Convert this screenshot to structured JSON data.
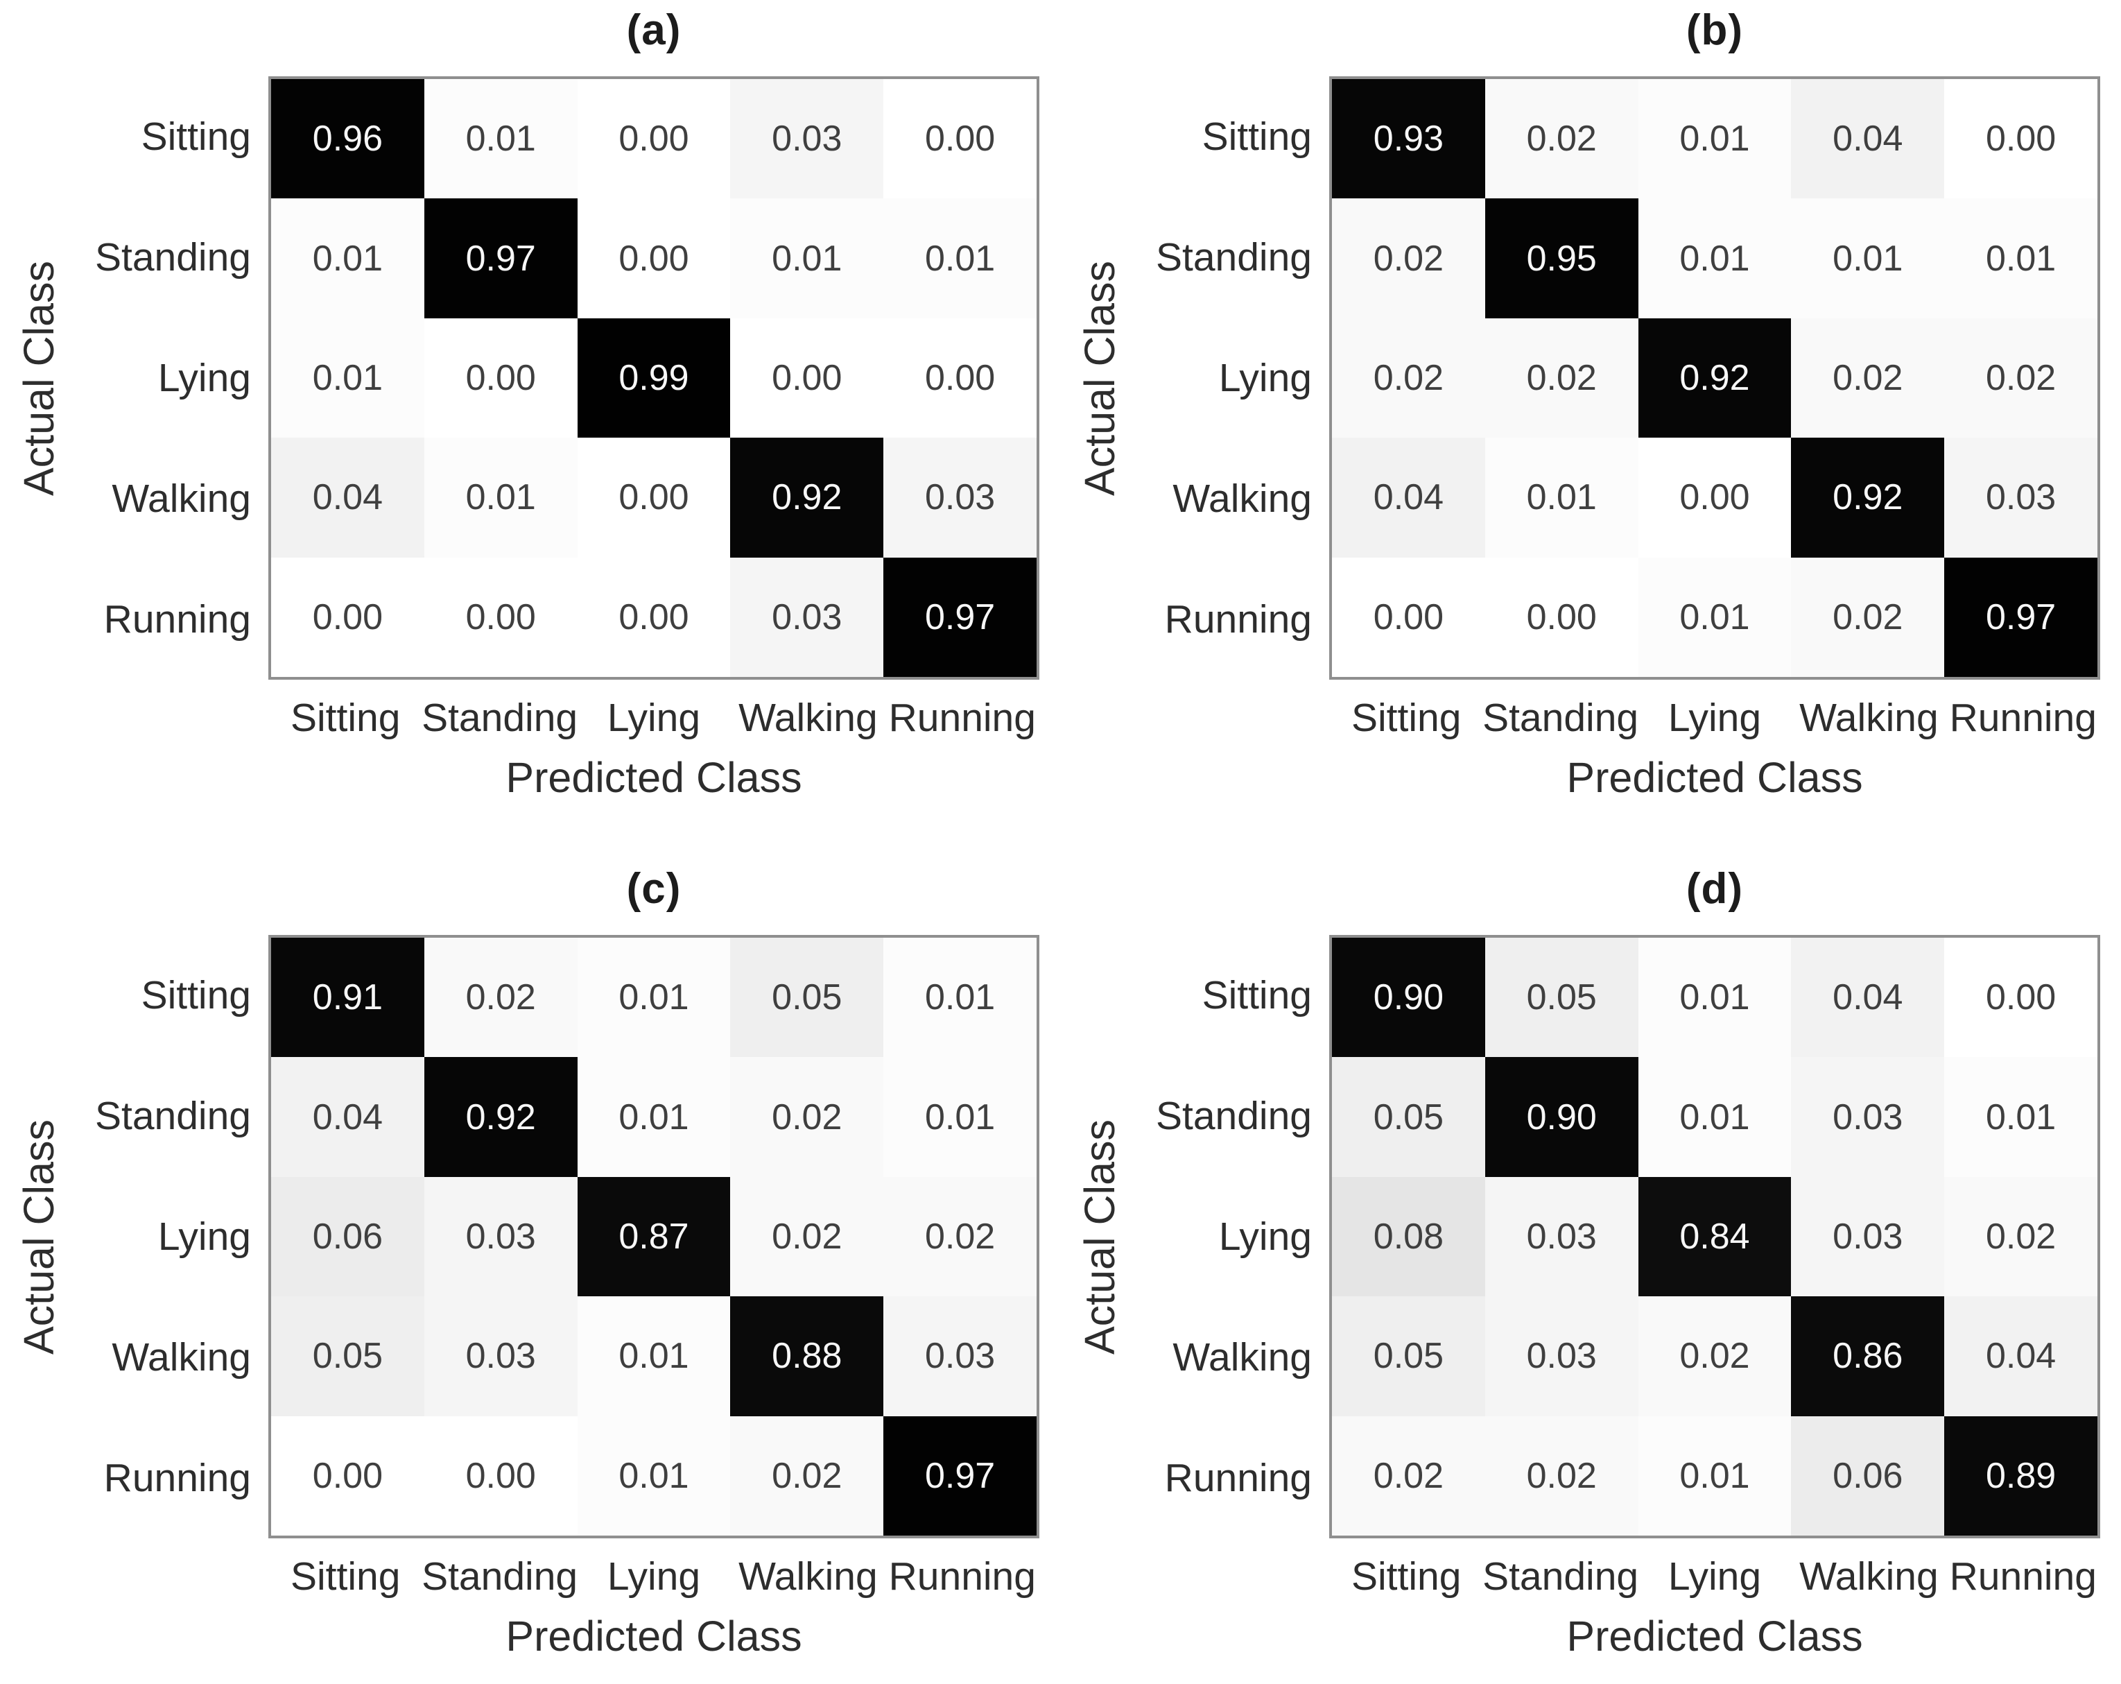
{
  "figure": {
    "background": "#ffffff",
    "row_axis_title": "Actual Class",
    "col_axis_title": "Predicted Class"
  },
  "colors": {
    "diagonal_cell": "#0d0d0d",
    "light_cell_tint": "#efefef",
    "white_cell": "#ffffff",
    "cell_text_dark": "#3f3f3f",
    "cell_text_light": "#f7f7f7",
    "frame_border": "#8f8f8f",
    "label_text": "#2d2d2d",
    "title_text": "#1c1c1c"
  },
  "chart_data": [
    {
      "type": "heatmap",
      "title": "(a)",
      "xlabel": "Predicted Class",
      "ylabel": "Actual Class",
      "categories": [
        "Sitting",
        "Standing",
        "Lying",
        "Walking",
        "Running"
      ],
      "row_categories": [
        "Sitting",
        "Standing",
        "Lying",
        "Walking",
        "Running"
      ],
      "value_range": [
        0,
        1
      ],
      "matrix": [
        [
          0.96,
          0.01,
          0.0,
          0.03,
          0.0
        ],
        [
          0.01,
          0.97,
          0.0,
          0.01,
          0.01
        ],
        [
          0.01,
          0.0,
          0.99,
          0.0,
          0.0
        ],
        [
          0.04,
          0.01,
          0.0,
          0.92,
          0.03
        ],
        [
          0.0,
          0.0,
          0.0,
          0.03,
          0.97
        ]
      ]
    },
    {
      "type": "heatmap",
      "title": "(b)",
      "xlabel": "Predicted Class",
      "ylabel": "Actual Class",
      "categories": [
        "Sitting",
        "Standing",
        "Lying",
        "Walking",
        "Running"
      ],
      "row_categories": [
        "Sitting",
        "Standing",
        "Lying",
        "Walking",
        "Running"
      ],
      "value_range": [
        0,
        1
      ],
      "matrix": [
        [
          0.93,
          0.02,
          0.01,
          0.04,
          0.0
        ],
        [
          0.02,
          0.95,
          0.01,
          0.01,
          0.01
        ],
        [
          0.02,
          0.02,
          0.92,
          0.02,
          0.02
        ],
        [
          0.04,
          0.01,
          0.0,
          0.92,
          0.03
        ],
        [
          0.0,
          0.0,
          0.01,
          0.02,
          0.97
        ]
      ]
    },
    {
      "type": "heatmap",
      "title": "(c)",
      "xlabel": "Predicted Class",
      "ylabel": "Actual Class",
      "categories": [
        "Sitting",
        "Standing",
        "Lying",
        "Walking",
        "Running"
      ],
      "row_categories": [
        "Sitting",
        "Standing",
        "Lying",
        "Walking",
        "Running"
      ],
      "value_range": [
        0,
        1
      ],
      "matrix": [
        [
          0.91,
          0.02,
          0.01,
          0.05,
          0.01
        ],
        [
          0.04,
          0.92,
          0.01,
          0.02,
          0.01
        ],
        [
          0.06,
          0.03,
          0.87,
          0.02,
          0.02
        ],
        [
          0.05,
          0.03,
          0.01,
          0.88,
          0.03
        ],
        [
          0.0,
          0.0,
          0.01,
          0.02,
          0.97
        ]
      ]
    },
    {
      "type": "heatmap",
      "title": "(d)",
      "xlabel": "Predicted Class",
      "ylabel": "Actual Class",
      "categories": [
        "Sitting",
        "Standing",
        "Lying",
        "Walking",
        "Running"
      ],
      "row_categories": [
        "Sitting",
        "Standing",
        "Lying",
        "Walking",
        "Running"
      ],
      "value_range": [
        0,
        1
      ],
      "matrix": [
        [
          0.9,
          0.05,
          0.01,
          0.04,
          0.0
        ],
        [
          0.05,
          0.9,
          0.01,
          0.03,
          0.01
        ],
        [
          0.08,
          0.03,
          0.84,
          0.03,
          0.02
        ],
        [
          0.05,
          0.03,
          0.02,
          0.86,
          0.04
        ],
        [
          0.02,
          0.02,
          0.01,
          0.06,
          0.89
        ]
      ]
    }
  ]
}
